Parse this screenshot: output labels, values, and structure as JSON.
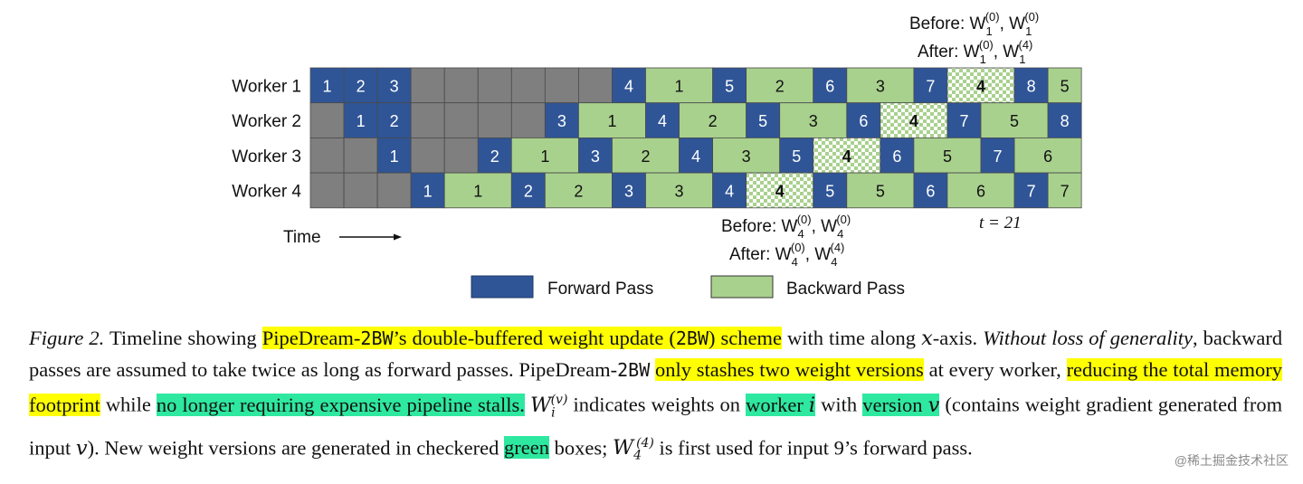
{
  "figure": {
    "workers": [
      "Worker 1",
      "Worker 2",
      "Worker 3",
      "Worker 4"
    ],
    "rows": [
      [
        {
          "t": "f",
          "l": "1",
          "w": 1
        },
        {
          "t": "f",
          "l": "2",
          "w": 1
        },
        {
          "t": "f",
          "l": "3",
          "w": 1
        },
        {
          "t": "i",
          "l": "",
          "w": 1
        },
        {
          "t": "i",
          "l": "",
          "w": 1
        },
        {
          "t": "i",
          "l": "",
          "w": 1
        },
        {
          "t": "i",
          "l": "",
          "w": 1
        },
        {
          "t": "i",
          "l": "",
          "w": 1
        },
        {
          "t": "i",
          "l": "",
          "w": 1
        },
        {
          "t": "f",
          "l": "4",
          "w": 1
        },
        {
          "t": "b",
          "l": "1",
          "w": 2
        },
        {
          "t": "f",
          "l": "5",
          "w": 1
        },
        {
          "t": "b",
          "l": "2",
          "w": 2
        },
        {
          "t": "f",
          "l": "6",
          "w": 1
        },
        {
          "t": "b",
          "l": "3",
          "w": 2
        },
        {
          "t": "f",
          "l": "7",
          "w": 1
        },
        {
          "t": "c",
          "l": "4",
          "w": 2
        },
        {
          "t": "f",
          "l": "8",
          "w": 1
        },
        {
          "t": "b",
          "l": "5",
          "w": 1
        }
      ],
      [
        {
          "t": "i",
          "l": "",
          "w": 1
        },
        {
          "t": "f",
          "l": "1",
          "w": 1
        },
        {
          "t": "f",
          "l": "2",
          "w": 1
        },
        {
          "t": "i",
          "l": "",
          "w": 1
        },
        {
          "t": "i",
          "l": "",
          "w": 1
        },
        {
          "t": "i",
          "l": "",
          "w": 1
        },
        {
          "t": "i",
          "l": "",
          "w": 1
        },
        {
          "t": "f",
          "l": "3",
          "w": 1
        },
        {
          "t": "b",
          "l": "1",
          "w": 2
        },
        {
          "t": "f",
          "l": "4",
          "w": 1
        },
        {
          "t": "b",
          "l": "2",
          "w": 2
        },
        {
          "t": "f",
          "l": "5",
          "w": 1
        },
        {
          "t": "b",
          "l": "3",
          "w": 2
        },
        {
          "t": "f",
          "l": "6",
          "w": 1
        },
        {
          "t": "c",
          "l": "4",
          "w": 2
        },
        {
          "t": "f",
          "l": "7",
          "w": 1
        },
        {
          "t": "b",
          "l": "5",
          "w": 2
        },
        {
          "t": "f",
          "l": "8",
          "w": 1
        }
      ],
      [
        {
          "t": "i",
          "l": "",
          "w": 1
        },
        {
          "t": "i",
          "l": "",
          "w": 1
        },
        {
          "t": "f",
          "l": "1",
          "w": 1
        },
        {
          "t": "i",
          "l": "",
          "w": 1
        },
        {
          "t": "i",
          "l": "",
          "w": 1
        },
        {
          "t": "f",
          "l": "2",
          "w": 1
        },
        {
          "t": "b",
          "l": "1",
          "w": 2
        },
        {
          "t": "f",
          "l": "3",
          "w": 1
        },
        {
          "t": "b",
          "l": "2",
          "w": 2
        },
        {
          "t": "f",
          "l": "4",
          "w": 1
        },
        {
          "t": "b",
          "l": "3",
          "w": 2
        },
        {
          "t": "f",
          "l": "5",
          "w": 1
        },
        {
          "t": "c",
          "l": "4",
          "w": 2
        },
        {
          "t": "f",
          "l": "6",
          "w": 1
        },
        {
          "t": "b",
          "l": "5",
          "w": 2
        },
        {
          "t": "f",
          "l": "7",
          "w": 1
        },
        {
          "t": "b",
          "l": "6",
          "w": 2
        }
      ],
      [
        {
          "t": "i",
          "l": "",
          "w": 1
        },
        {
          "t": "i",
          "l": "",
          "w": 1
        },
        {
          "t": "i",
          "l": "",
          "w": 1
        },
        {
          "t": "f",
          "l": "1",
          "w": 1
        },
        {
          "t": "b",
          "l": "1",
          "w": 2
        },
        {
          "t": "f",
          "l": "2",
          "w": 1
        },
        {
          "t": "b",
          "l": "2",
          "w": 2
        },
        {
          "t": "f",
          "l": "3",
          "w": 1
        },
        {
          "t": "b",
          "l": "3",
          "w": 2
        },
        {
          "t": "f",
          "l": "4",
          "w": 1
        },
        {
          "t": "c",
          "l": "4",
          "w": 2
        },
        {
          "t": "f",
          "l": "5",
          "w": 1
        },
        {
          "t": "b",
          "l": "5",
          "w": 2
        },
        {
          "t": "f",
          "l": "6",
          "w": 1
        },
        {
          "t": "b",
          "l": "6",
          "w": 2
        },
        {
          "t": "f",
          "l": "7",
          "w": 1
        },
        {
          "t": "b",
          "l": "7",
          "w": 1
        }
      ]
    ],
    "top_annotation": {
      "before": "Before:",
      "after": "After:"
    },
    "bottom_annotation": {
      "before": "Before:",
      "after": "After:"
    },
    "t_label": "t = 21",
    "time_label": "Time",
    "legend": {
      "forward": "Forward Pass",
      "backward": "Backward Pass"
    },
    "colors": {
      "forward": "#2f5597",
      "backward": "#a9d18e",
      "idle": "#7f7f7f",
      "highlight_yellow": "#ffff00",
      "highlight_green": "#2ee8a0"
    }
  },
  "caption": {
    "figure_label": "Figure 2.",
    "s1": "Timeline showing",
    "h1a": "PipeDream-",
    "h1b": "2BW",
    "h1c": "’s double-buffered weight update (",
    "h1d": "2BW",
    "h1e": ") scheme",
    "s2": "with time along",
    "x": "x",
    "s3": "-axis.",
    "italic1": "Without loss of generality",
    "s4": ", backward passes are assumed to take twice as long as forward passes. PipeDream-",
    "s4b": "2BW",
    "h2": "only stashes two weight versions",
    "s5": "at every worker,",
    "h3": "reducing the total memory footprint",
    "s6": "while",
    "h4": "no longer requiring expensive pipeline stalls.",
    "s7": "indicates weights on",
    "h5": "worker",
    "h5i": "i",
    "s8": "with",
    "h6": "version",
    "h6v": "v",
    "s9": "(contains weight gradient generated from input",
    "s9v": "v",
    "s10": "). New weight versions are generated in checkered",
    "h7": "green",
    "s11": "boxes;",
    "s12": "is first used for input 9’s forward pass."
  },
  "watermark": "@稀土掘金技术社区"
}
